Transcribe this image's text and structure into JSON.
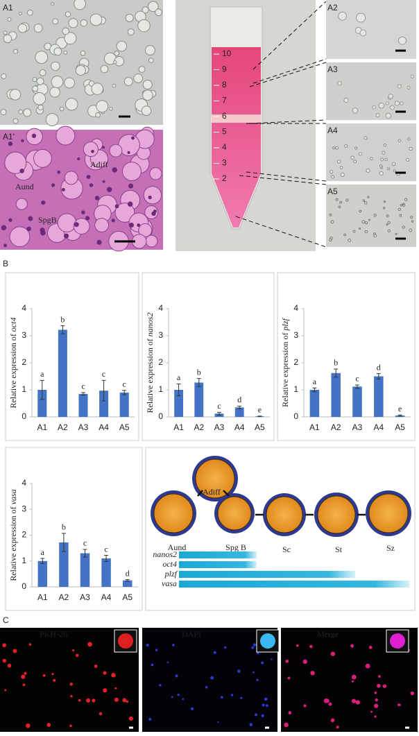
{
  "panels": {
    "a1": "A1",
    "a1_prime": "A1'",
    "a2": "A2",
    "a3": "A3",
    "a4": "A4",
    "a5": "A5",
    "b": "B",
    "c": "C"
  },
  "histology_labels": [
    "Aund",
    "Adiff",
    "SpgB"
  ],
  "tube_graduations": [
    10,
    9,
    8,
    7,
    6,
    5,
    4,
    3,
    2
  ],
  "chart_data": [
    {
      "type": "bar",
      "y_label": "Relative expression of oct4",
      "categories": [
        "A1",
        "A2",
        "A3",
        "A4",
        "A5"
      ],
      "values": [
        1.0,
        3.22,
        0.85,
        0.97,
        0.9
      ],
      "errors": [
        0.35,
        0.15,
        0.05,
        0.38,
        0.08
      ],
      "annotations": [
        "a",
        "b",
        "c",
        "c",
        "c"
      ],
      "color": "#4472c4",
      "ylim": [
        0,
        4
      ],
      "yticks": [
        0,
        1,
        2,
        3,
        4
      ]
    },
    {
      "type": "bar",
      "y_label": "Relative expression of nanos2",
      "categories": [
        "A1",
        "A2",
        "A3",
        "A4",
        "A5"
      ],
      "values": [
        1.0,
        1.27,
        0.12,
        0.35,
        0.02
      ],
      "errors": [
        0.22,
        0.15,
        0.05,
        0.05,
        0.01
      ],
      "annotations": [
        "a",
        "b",
        "c",
        "d",
        "e"
      ],
      "color": "#4472c4",
      "ylim": [
        0,
        4
      ],
      "yticks": [
        0,
        1,
        2,
        3,
        4
      ]
    },
    {
      "type": "bar",
      "y_label": "Relative expression of plzf",
      "categories": [
        "A1",
        "A2",
        "A3",
        "A4",
        "A5"
      ],
      "values": [
        1.0,
        1.62,
        1.12,
        1.5,
        0.05
      ],
      "errors": [
        0.07,
        0.15,
        0.06,
        0.1,
        0.02
      ],
      "annotations": [
        "a",
        "b",
        "c",
        "d",
        "e"
      ],
      "color": "#4472c4",
      "ylim": [
        0,
        4
      ],
      "yticks": [
        0,
        1,
        2,
        3,
        4
      ]
    },
    {
      "type": "bar",
      "y_label": "Relative expression of vasa",
      "categories": [
        "A1",
        "A2",
        "A3",
        "A4",
        "A5"
      ],
      "values": [
        1.0,
        1.72,
        1.3,
        1.1,
        0.25
      ],
      "errors": [
        0.1,
        0.35,
        0.15,
        0.12,
        0.03
      ],
      "annotations": [
        "a",
        "b",
        "c",
        "c",
        "d"
      ],
      "color": "#4472c4",
      "ylim": [
        0,
        4
      ],
      "yticks": [
        0,
        1,
        2,
        3,
        4
      ]
    }
  ],
  "schematic": {
    "cells": [
      "Adiff",
      "Aund",
      "Spg B",
      "Sc",
      "St",
      "Sz"
    ],
    "genes": [
      "nanos2",
      "oct4",
      "plzf",
      "vasa"
    ]
  },
  "fluorescence_labels": [
    "PKH-26",
    "DAPI",
    "Merge"
  ]
}
